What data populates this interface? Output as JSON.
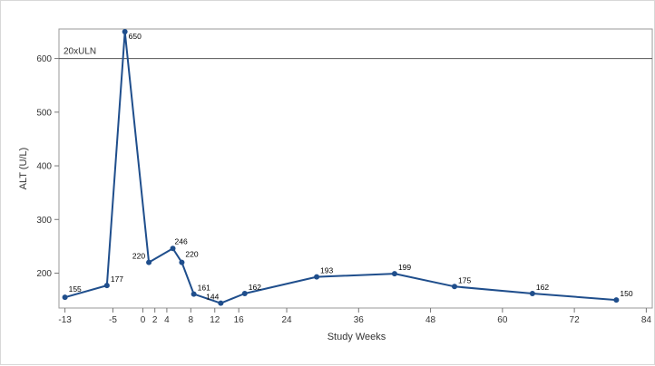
{
  "chart_data": {
    "type": "line",
    "xlabel": "Study Weeks",
    "ylabel": "ALT (U/L)",
    "xlim": [
      -14,
      85
    ],
    "ylim": [
      135,
      655
    ],
    "x_ticks": [
      -13,
      -5,
      0,
      2,
      4,
      8,
      12,
      16,
      24,
      36,
      48,
      60,
      72,
      84
    ],
    "y_ticks": [
      200,
      300,
      400,
      500,
      600
    ],
    "grid": false,
    "series": [
      {
        "color": "#1f4e8c",
        "points": [
          {
            "x": -13,
            "y": 155,
            "label": "155"
          },
          {
            "x": -6,
            "y": 177,
            "label": "177"
          },
          {
            "x": -3,
            "y": 650,
            "label": "650"
          },
          {
            "x": 1,
            "y": 220,
            "label": "220"
          },
          {
            "x": 5,
            "y": 246,
            "label": "246"
          },
          {
            "x": 6.5,
            "y": 220,
            "label": "220"
          },
          {
            "x": 8.5,
            "y": 161,
            "label": "161"
          },
          {
            "x": 13,
            "y": 144,
            "label": "144"
          },
          {
            "x": 17,
            "y": 162,
            "label": "162"
          },
          {
            "x": 29,
            "y": 193,
            "label": "193"
          },
          {
            "x": 42,
            "y": 199,
            "label": "199"
          },
          {
            "x": 52,
            "y": 175,
            "label": "175"
          },
          {
            "x": 65,
            "y": 162,
            "label": "162"
          },
          {
            "x": 79,
            "y": 150,
            "label": "150"
          }
        ]
      }
    ],
    "reference_line": {
      "y": 600,
      "label": "20xULN",
      "color": "#555555"
    }
  }
}
